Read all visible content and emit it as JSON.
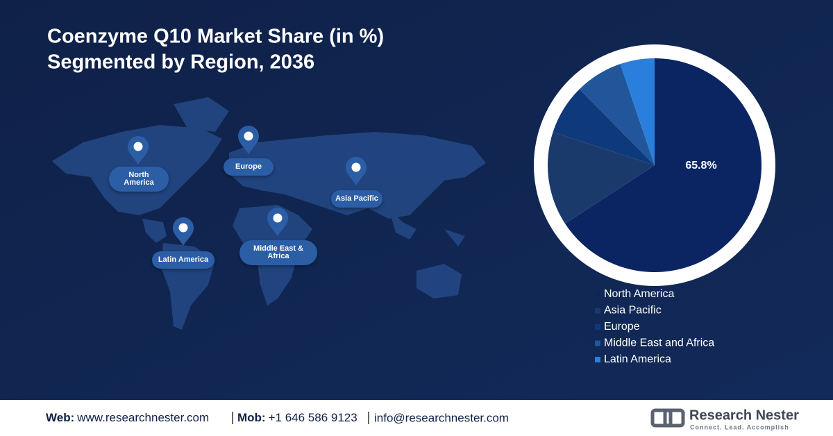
{
  "chart_data": {
    "type": "pie",
    "title": "Coenzyme Q10 Market Share (in %)",
    "subtitle": "Segmented by Region, 2036",
    "categories": [
      "North America",
      "Asia Pacific",
      "Europe",
      "Middle East and Africa",
      "Latin America"
    ],
    "values": [
      65.8,
      14.2,
      7.6,
      7.2,
      5.2
    ],
    "value_labels": [
      "65.8%",
      null,
      null,
      null,
      null
    ],
    "colors": [
      "#0b2563",
      "#1a3a6c",
      "#0e3a7c",
      "#21579a",
      "#2b7fdc"
    ]
  },
  "map_labels": [
    "North America",
    "Europe",
    "Asia Pacific",
    "Middle East & Africa",
    "Latin America"
  ],
  "footer": {
    "web_label": "Web:",
    "web": "www.researchnester.com",
    "mob_label": "Mob:",
    "mob": "+1 646 586 9123",
    "email": "info@researchnester.com"
  },
  "logo": {
    "name": "Research Nester",
    "tagline": "Connect. Lead. Accomplish"
  }
}
